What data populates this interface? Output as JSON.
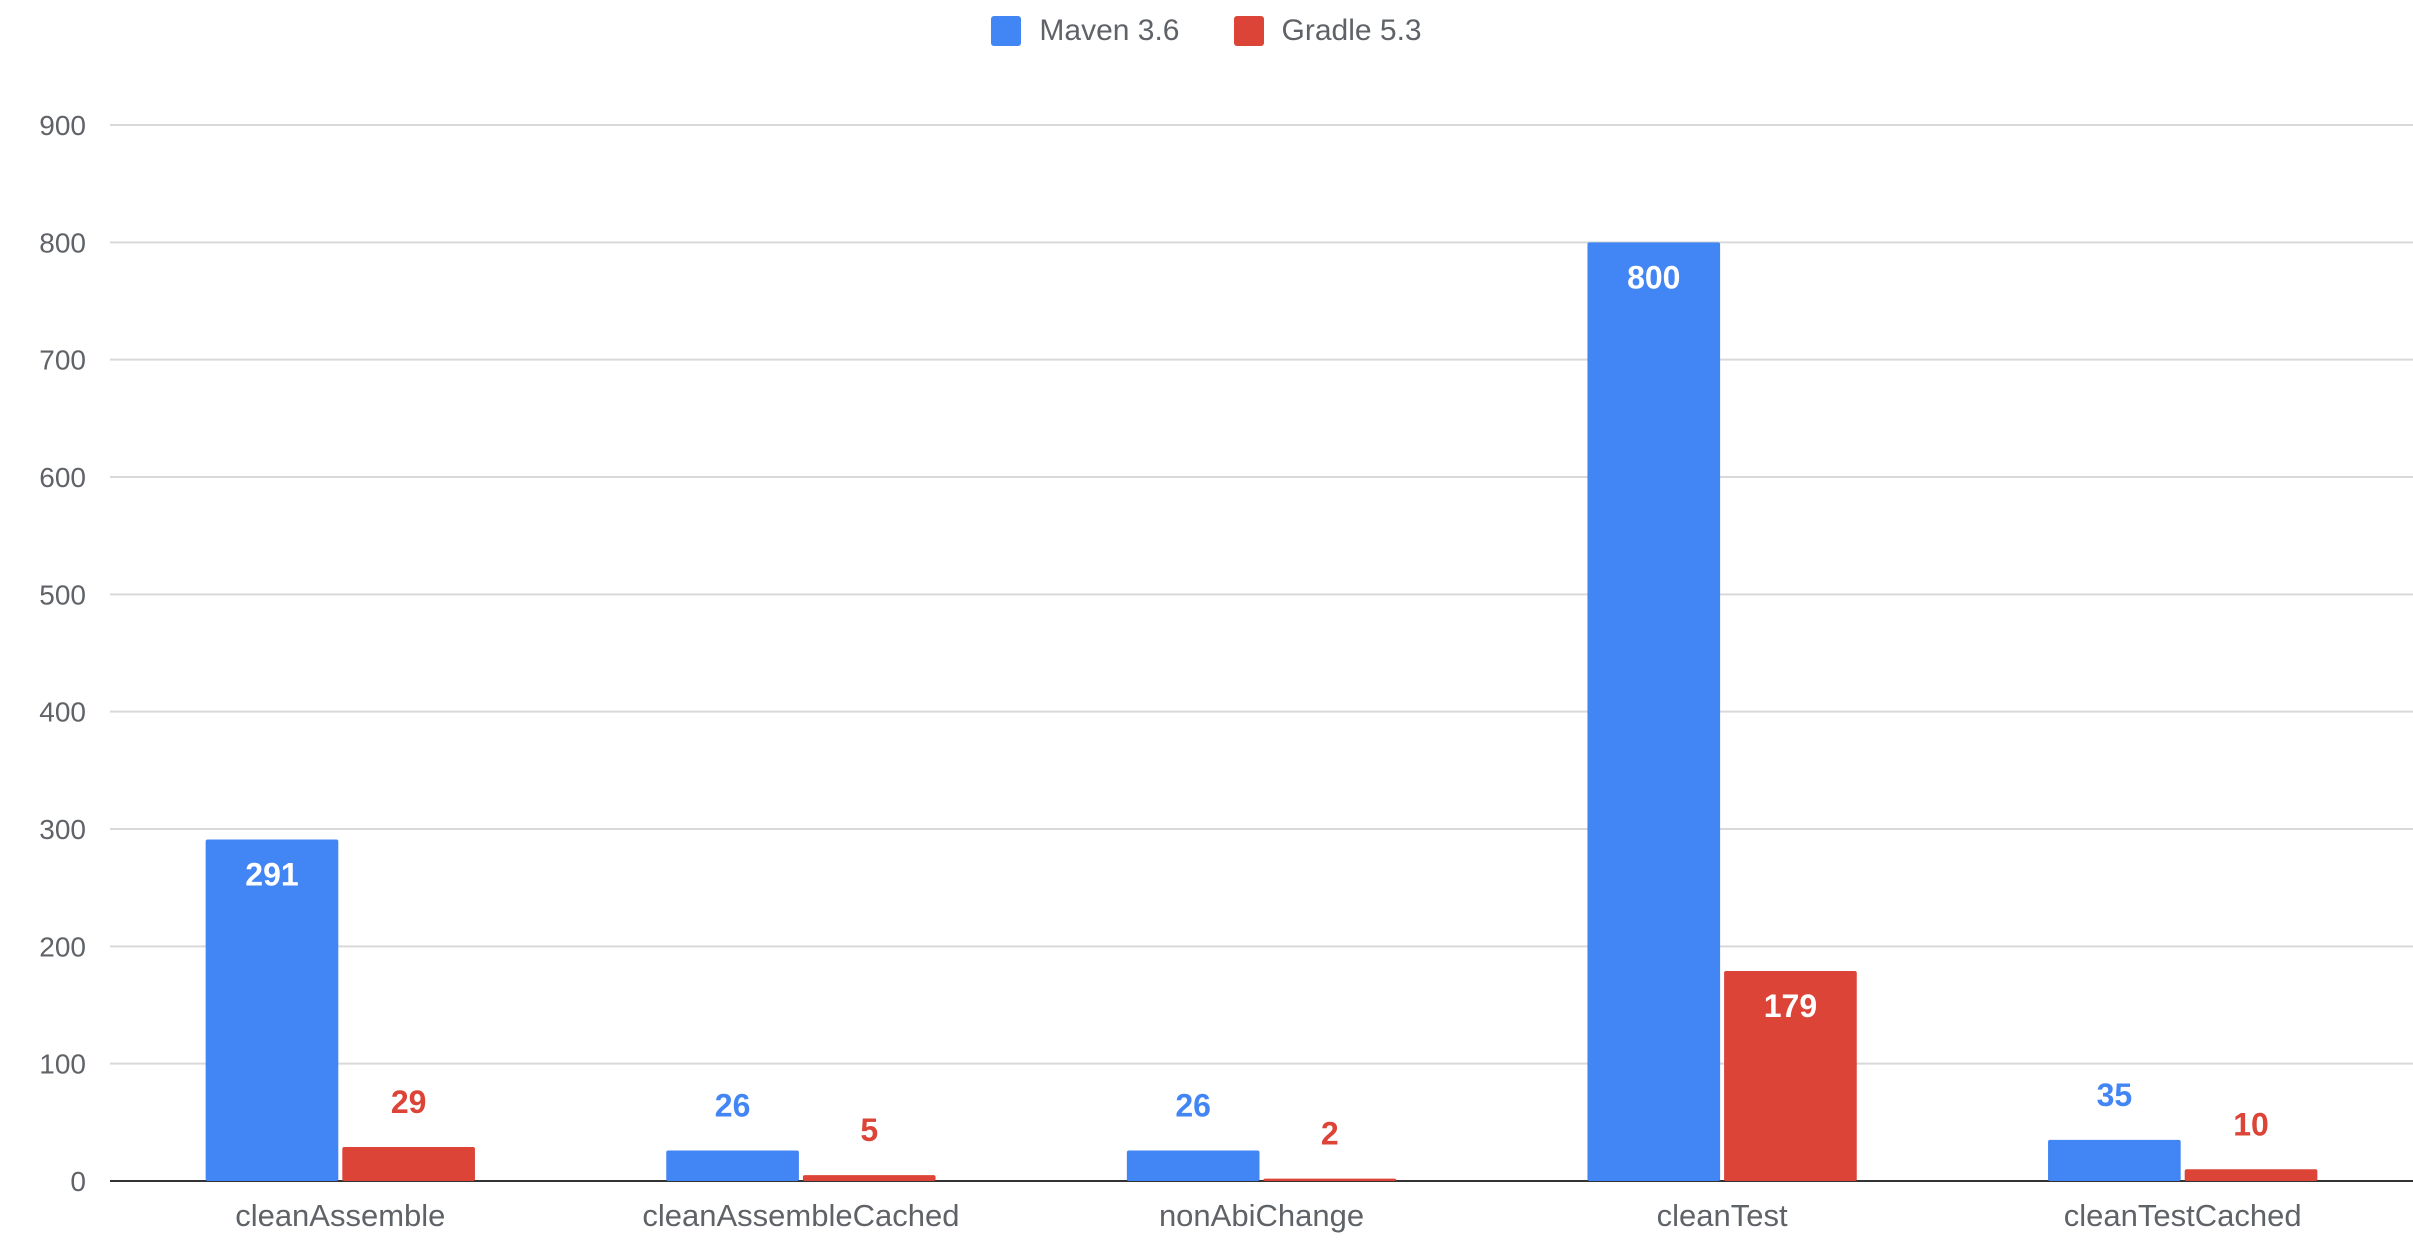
{
  "chart_data": {
    "type": "bar",
    "categories": [
      "cleanAssemble",
      "cleanAssembleCached",
      "nonAbiChange",
      "cleanTest",
      "cleanTestCached"
    ],
    "series": [
      {
        "name": "Maven 3.6",
        "color": "#4285f4",
        "values": [
          291,
          26,
          26,
          800,
          35
        ]
      },
      {
        "name": "Gradle 5.3",
        "color": "#db4437",
        "values": [
          29,
          5,
          2,
          179,
          10
        ]
      }
    ],
    "yticks": [
      0,
      100,
      200,
      300,
      400,
      500,
      600,
      700,
      800,
      900
    ],
    "ylim": [
      0,
      900
    ],
    "grid": true,
    "legend_position": "top-center",
    "data_labels": true,
    "data_label_color_on_bar": "#ffffff"
  }
}
